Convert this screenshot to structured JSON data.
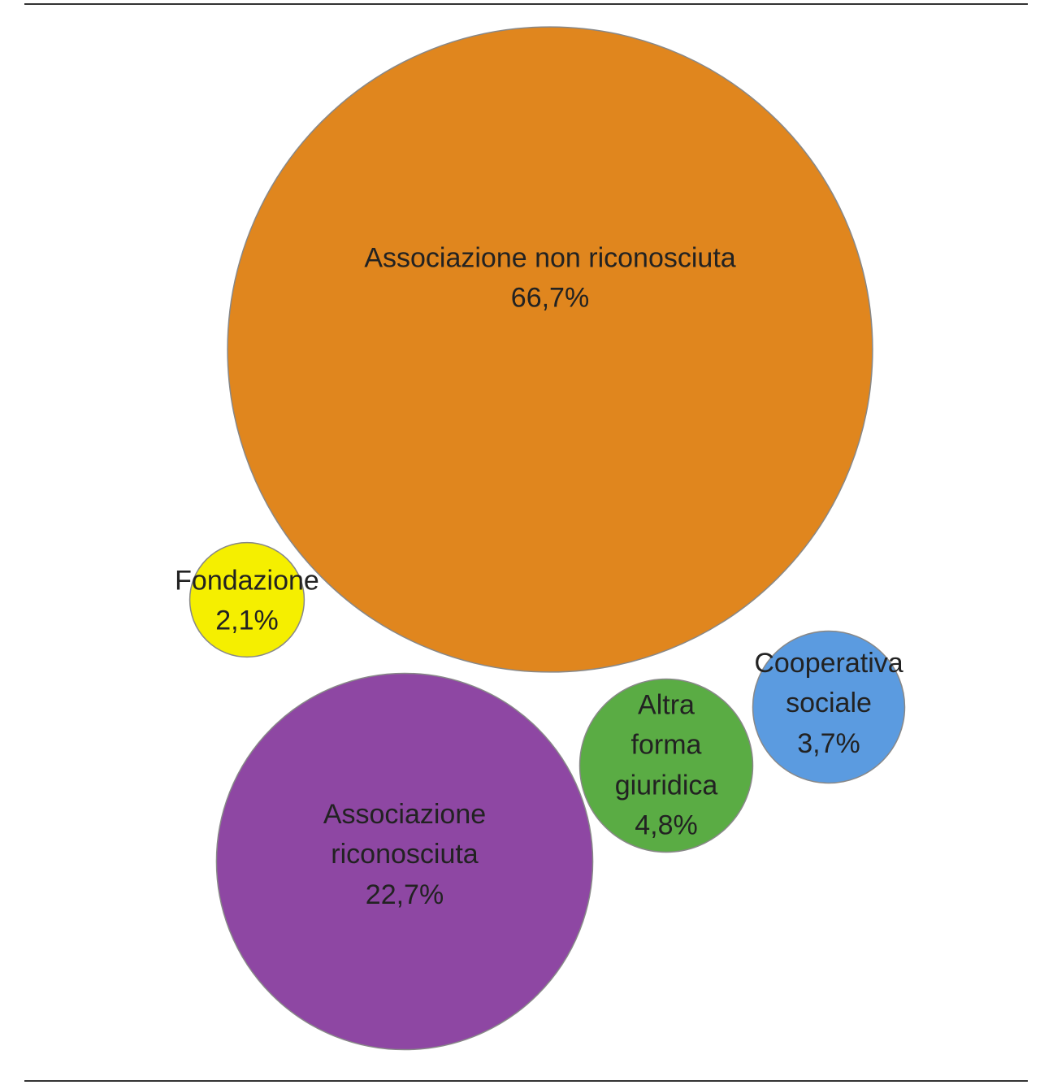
{
  "chart_data": {
    "type": "bubble",
    "categories": [
      "Associazione non riconosciuta",
      "Fondazione",
      "Associazione riconosciuta",
      "Altra forma giuridica",
      "Cooperativa sociale"
    ],
    "values": [
      66.7,
      2.1,
      22.7,
      4.8,
      3.7
    ],
    "value_labels": [
      "66,7%",
      "2,1%",
      "22,7%",
      "4,8%",
      "3,7%"
    ],
    "colors": [
      "#e0861e",
      "#f5ef00",
      "#8e47a3",
      "#5aac44",
      "#5b9be0"
    ]
  }
}
